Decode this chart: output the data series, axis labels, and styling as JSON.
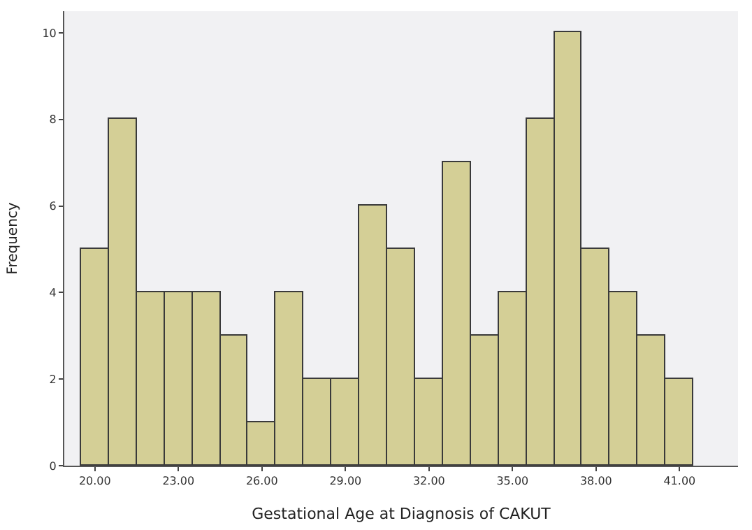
{
  "chart_data": {
    "type": "histogram",
    "xlabel": "Gestational Age at Diagnosis of CAKUT",
    "ylabel": "Frequency",
    "bins": [
      19.5,
      20.5,
      21.5,
      22.5,
      23.5,
      24.5,
      25.5,
      26.5,
      27.5,
      28.5,
      29.5,
      30.5,
      31.5,
      32.5,
      33.5,
      34.5,
      35.5,
      36.5,
      37.5,
      38.5,
      39.5,
      40.5,
      41.5
    ],
    "values": [
      5,
      8,
      4,
      4,
      4,
      3,
      1,
      4,
      2,
      2,
      6,
      5,
      2,
      7,
      3,
      4,
      8,
      10,
      5,
      4,
      3,
      2
    ],
    "color": "#d4cf96",
    "xlim": [
      18.9,
      43.1
    ],
    "ylim": [
      0,
      10.5
    ],
    "xticks": [
      {
        "value": 20,
        "label": "20.00"
      },
      {
        "value": 23,
        "label": "23.00"
      },
      {
        "value": 26,
        "label": "26.00"
      },
      {
        "value": 29,
        "label": "29.00"
      },
      {
        "value": 32,
        "label": "32.00"
      },
      {
        "value": 35,
        "label": "35.00"
      },
      {
        "value": 38,
        "label": "38.00"
      },
      {
        "value": 41,
        "label": "41.00"
      }
    ],
    "yticks": [
      0,
      2,
      4,
      6,
      8,
      10
    ]
  }
}
